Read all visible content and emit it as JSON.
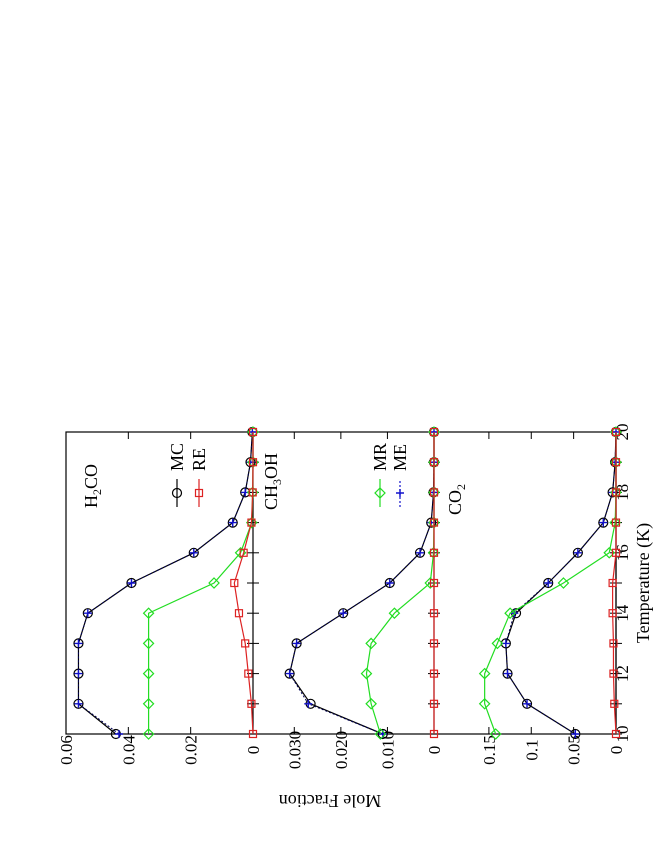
{
  "chart_data": {
    "type": "line",
    "orientation": "rotated-180",
    "xlabel": "Temperature (K)",
    "ylabel": "Mole Fraction",
    "x": [
      10,
      11,
      12,
      13,
      14,
      15,
      16,
      17,
      18,
      19,
      20
    ],
    "xlim": [
      10,
      20
    ],
    "x_ticks": [
      "10",
      "12",
      "14",
      "16",
      "18",
      "20"
    ],
    "colors": {
      "MC": "#000000",
      "RE": "#dd2222",
      "MR": "#22dd22",
      "ME": "#1010cc",
      "fit": "#000055"
    },
    "legend": {
      "MC": "MC",
      "RE": "RE",
      "MR": "MR",
      "ME": "ME"
    },
    "panels": [
      {
        "label_main": "H",
        "label_sub": "2",
        "label_rest": "CO",
        "ylim": [
          0,
          0.06
        ],
        "y_ticks": [
          "0",
          "0.02",
          "0.04",
          "0.06"
        ],
        "series": [
          {
            "name": "MC",
            "marker": "circle",
            "values": [
              0.044,
              0.056,
              0.056,
              0.056,
              0.053,
              0.039,
              0.019,
              0.0065,
              0.0025,
              0.0008,
              0.0002
            ]
          },
          {
            "name": "ME",
            "marker": "plus",
            "values": [
              0.043,
              0.056,
              0.056,
              0.056,
              0.053,
              0.039,
              0.019,
              0.0065,
              0.0025,
              0.0008,
              0.0002
            ]
          },
          {
            "name": "MR",
            "marker": "diamond",
            "values": [
              0.0335,
              0.0335,
              0.0335,
              0.0335,
              0.0335,
              0.0125,
              0.004,
              0.0004,
              0.0001,
              0.0,
              0.0
            ]
          },
          {
            "name": "RE",
            "marker": "square",
            "values": [
              0.0,
              0.0005,
              0.0015,
              0.0025,
              0.0045,
              0.006,
              0.003,
              0.0005,
              0.0001,
              0.0,
              0.0
            ]
          }
        ]
      },
      {
        "label_main": "CH",
        "label_sub": "3",
        "label_rest": "OH",
        "ylim": [
          0,
          0.035
        ],
        "y_ticks": [
          "0",
          "0.010",
          "0.020",
          "0.030"
        ],
        "series": [
          {
            "name": "MC",
            "marker": "circle",
            "values": [
              0.011,
              0.0265,
              0.031,
              0.0295,
              0.0195,
              0.0095,
              0.003,
              0.0006,
              0.0001,
              0.0,
              0.0
            ]
          },
          {
            "name": "ME",
            "marker": "plus",
            "values": [
              0.011,
              0.027,
              0.031,
              0.0295,
              0.0195,
              0.0095,
              0.003,
              0.0006,
              0.0001,
              0.0,
              0.0
            ]
          },
          {
            "name": "MR",
            "marker": "diamond",
            "values": [
              0.0115,
              0.0135,
              0.0145,
              0.0135,
              0.0085,
              0.0008,
              0.0001,
              0.0,
              0.0,
              0.0,
              0.0
            ]
          },
          {
            "name": "RE",
            "marker": "square",
            "values": [
              0.0,
              0.0,
              0.0,
              0.0,
              0.0,
              0.0,
              0.0,
              0.0,
              0.0,
              0.0,
              0.0
            ]
          }
        ]
      },
      {
        "label_main": "CO",
        "label_sub": "2",
        "label_rest": "",
        "ylim": [
          0,
          0.19
        ],
        "y_ticks": [
          "0",
          "0.05",
          "0.1",
          "0.15"
        ],
        "series": [
          {
            "name": "MC",
            "marker": "circle",
            "values": [
              0.048,
              0.105,
              0.128,
              0.13,
              0.118,
              0.08,
              0.045,
              0.015,
              0.004,
              0.001,
              0.0
            ]
          },
          {
            "name": "ME",
            "marker": "plus",
            "values": [
              0.048,
              0.105,
              0.128,
              0.13,
              0.12,
              0.08,
              0.045,
              0.015,
              0.004,
              0.001,
              0.0
            ]
          },
          {
            "name": "MR",
            "marker": "diamond",
            "values": [
              0.142,
              0.155,
              0.155,
              0.14,
              0.125,
              0.062,
              0.008,
              0.001,
              0.0,
              0.0,
              0.0
            ]
          },
          {
            "name": "RE",
            "marker": "square",
            "values": [
              0.0,
              0.002,
              0.003,
              0.003,
              0.004,
              0.004,
              0.0,
              0.0,
              0.0,
              0.0,
              0.0
            ]
          }
        ]
      }
    ]
  }
}
